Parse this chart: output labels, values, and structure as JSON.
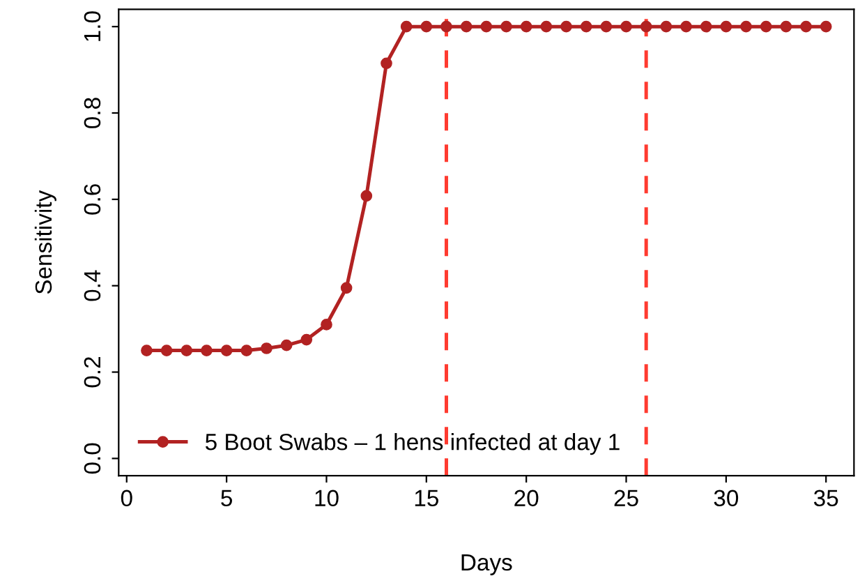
{
  "chart_data": {
    "type": "line",
    "xlabel": "Days",
    "ylabel": "Sensitivity",
    "x": [
      1,
      2,
      3,
      4,
      5,
      6,
      7,
      8,
      9,
      10,
      11,
      12,
      13,
      14,
      15,
      16,
      17,
      18,
      19,
      20,
      21,
      22,
      23,
      24,
      25,
      26,
      27,
      28,
      29,
      30,
      31,
      32,
      33,
      34,
      35
    ],
    "series": [
      {
        "name": "5 Boot Swabs – 1 hens infected at day 1",
        "color": "#b22222",
        "values": [
          0.25,
          0.25,
          0.25,
          0.25,
          0.25,
          0.25,
          0.255,
          0.262,
          0.275,
          0.31,
          0.395,
          0.608,
          0.915,
          1,
          1,
          1,
          1,
          1,
          1,
          1,
          1,
          1,
          1,
          1,
          1,
          1,
          1,
          1,
          1,
          1,
          1,
          1,
          1,
          1,
          1
        ]
      }
    ],
    "marker": "circle",
    "line_style": "solid",
    "xlim": [
      -0.4,
      36.4
    ],
    "ylim": [
      -0.04,
      1.04
    ],
    "xticks": [
      0,
      5,
      10,
      15,
      20,
      25,
      30,
      35
    ],
    "yticks": [
      {
        "value": 0,
        "label": "0.0"
      },
      {
        "value": 0.2,
        "label": "0.2"
      },
      {
        "value": 0.4,
        "label": "0.4"
      },
      {
        "value": 0.6,
        "label": "0.6"
      },
      {
        "value": 0.8,
        "label": "0.8"
      },
      {
        "value": 1,
        "label": "1.0"
      }
    ],
    "ref_lines": [
      {
        "axis": "x",
        "value": 16,
        "color": "#ff3b30",
        "line_style": "dashed"
      },
      {
        "axis": "x",
        "value": 26,
        "color": "#ff3b30",
        "line_style": "dashed"
      }
    ],
    "grid": false,
    "legend": "bottom left"
  }
}
